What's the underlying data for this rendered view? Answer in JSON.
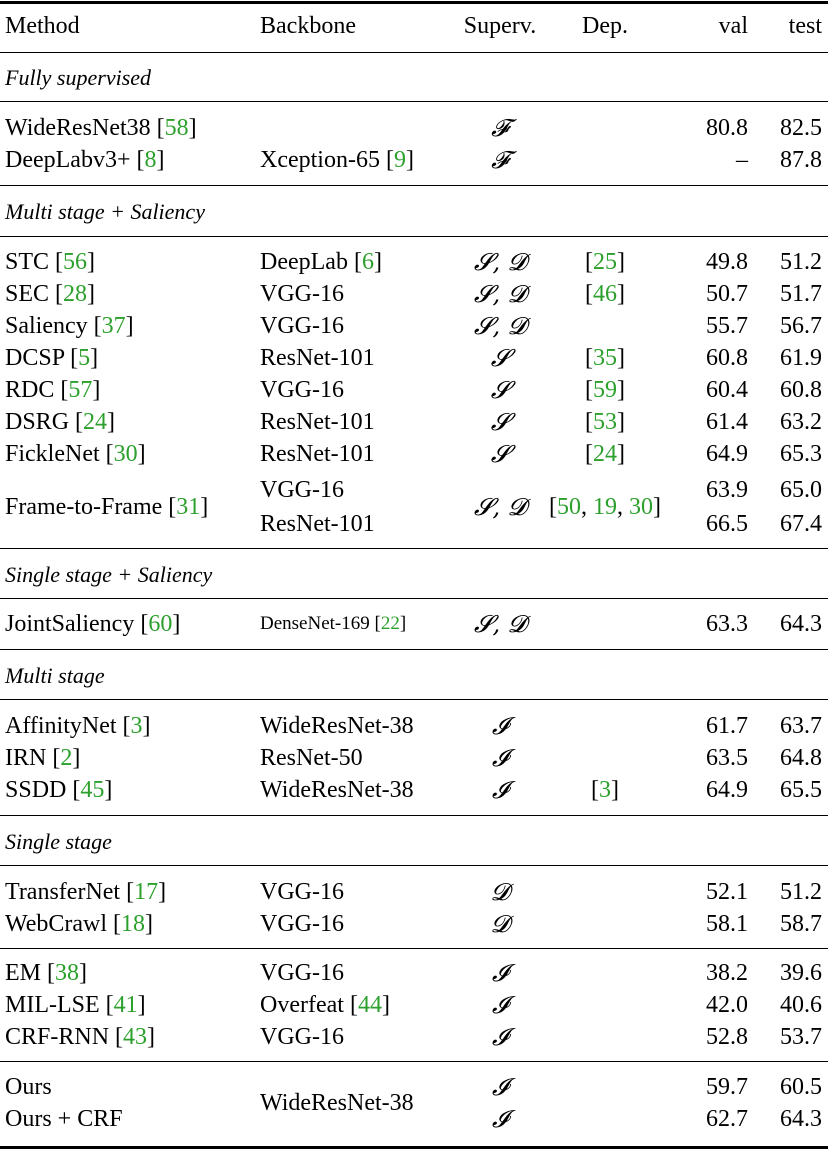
{
  "header": {
    "method": "Method",
    "backbone": "Backbone",
    "superv": "Superv.",
    "dep": "Dep.",
    "val": "val",
    "test": "test"
  },
  "groups": [
    {
      "title": "Fully supervised",
      "rows": [
        {
          "method": "WideResNet38",
          "method_ref": "58",
          "backbone": "",
          "backbone_ref": "",
          "superv": "𝓕",
          "dep": "",
          "val": "80.8",
          "test": "82.5"
        },
        {
          "method": "DeepLabv3+",
          "method_ref": "8",
          "backbone": "Xception-65",
          "backbone_ref": "9",
          "superv": "𝓕",
          "dep": "",
          "val": "–",
          "test": "87.8"
        }
      ]
    },
    {
      "title": "Multi stage + Saliency",
      "rows": [
        {
          "method": "STC",
          "method_ref": "56",
          "backbone": "DeepLab",
          "backbone_ref": "6",
          "superv": "𝓢, 𝓓",
          "dep": "25",
          "val": "49.8",
          "test": "51.2"
        },
        {
          "method": "SEC",
          "method_ref": "28",
          "backbone": "VGG-16",
          "backbone_ref": "",
          "superv": "𝓢, 𝓓",
          "dep": "46",
          "val": "50.7",
          "test": "51.7"
        },
        {
          "method": "Saliency",
          "method_ref": "37",
          "backbone": "VGG-16",
          "backbone_ref": "",
          "superv": "𝓢, 𝓓",
          "dep": "",
          "val": "55.7",
          "test": "56.7"
        },
        {
          "method": "DCSP",
          "method_ref": "5",
          "backbone": "ResNet-101",
          "backbone_ref": "",
          "superv": "𝓢",
          "dep": "35",
          "val": "60.8",
          "test": "61.9"
        },
        {
          "method": "RDC",
          "method_ref": "57",
          "backbone": "VGG-16",
          "backbone_ref": "",
          "superv": "𝓢",
          "dep": "59",
          "val": "60.4",
          "test": "60.8"
        },
        {
          "method": "DSRG",
          "method_ref": "24",
          "backbone": "ResNet-101",
          "backbone_ref": "",
          "superv": "𝓢",
          "dep": "53",
          "val": "61.4",
          "test": "63.2"
        },
        {
          "method": "FickleNet",
          "method_ref": "30",
          "backbone": "ResNet-101",
          "backbone_ref": "",
          "superv": "𝓢",
          "dep": "24",
          "val": "64.9",
          "test": "65.3"
        },
        {
          "method": "Frame-to-Frame",
          "method_ref": "31",
          "backbone": "VGG-16",
          "backbone2": "ResNet-101",
          "superv": "𝓢, 𝓓",
          "dep_refs": [
            "50",
            "19",
            "30"
          ],
          "val": "63.9",
          "test": "65.0",
          "val2": "66.5",
          "test2": "67.4"
        }
      ]
    },
    {
      "title": "Single stage + Saliency",
      "rows": [
        {
          "method": "JointSaliency",
          "method_ref": "60",
          "backbone": "DenseNet-169",
          "backbone_ref": "22",
          "superv": "𝓢, 𝓓",
          "dep": "",
          "val": "63.3",
          "test": "64.3"
        }
      ]
    },
    {
      "title": "Multi stage",
      "rows": [
        {
          "method": "AffinityNet",
          "method_ref": "3",
          "backbone": "WideResNet-38",
          "backbone_ref": "",
          "superv": "𝓘",
          "dep": "",
          "val": "61.7",
          "test": "63.7"
        },
        {
          "method": "IRN",
          "method_ref": "2",
          "backbone": "ResNet-50",
          "backbone_ref": "",
          "superv": "𝓘",
          "dep": "",
          "val": "63.5",
          "test": "64.8"
        },
        {
          "method": "SSDD",
          "method_ref": "45",
          "backbone": "WideResNet-38",
          "backbone_ref": "",
          "superv": "𝓘",
          "dep": "3",
          "val": "64.9",
          "test": "65.5"
        }
      ]
    },
    {
      "title": "Single stage",
      "rows": [
        {
          "method": "TransferNet",
          "method_ref": "17",
          "backbone": "VGG-16",
          "backbone_ref": "",
          "superv": "𝓓",
          "dep": "",
          "val": "52.1",
          "test": "51.2"
        },
        {
          "method": "WebCrawl",
          "method_ref": "18",
          "backbone": "VGG-16",
          "backbone_ref": "",
          "superv": "𝓓",
          "dep": "",
          "val": "58.1",
          "test": "58.7"
        },
        {
          "method": "EM",
          "method_ref": "38",
          "backbone": "VGG-16",
          "backbone_ref": "",
          "superv": "𝓘",
          "dep": "",
          "val": "38.2",
          "test": "39.6"
        },
        {
          "method": "MIL-LSE",
          "method_ref": "41",
          "backbone": "Overfeat",
          "backbone_ref": "44",
          "superv": "𝓘",
          "dep": "",
          "val": "42.0",
          "test": "40.6"
        },
        {
          "method": "CRF-RNN",
          "method_ref": "43",
          "backbone": "VGG-16",
          "backbone_ref": "",
          "superv": "𝓘",
          "dep": "",
          "val": "52.8",
          "test": "53.7"
        },
        {
          "method": "Ours",
          "method_ref": "",
          "backbone": "WideResNet-38",
          "backbone_ref": "",
          "superv": "𝓘",
          "dep": "",
          "val": "59.7",
          "test": "60.5"
        },
        {
          "method": "Ours + CRF",
          "method_ref": "",
          "backbone": "",
          "backbone_ref": "",
          "superv": "𝓘",
          "dep": "",
          "val": "62.7",
          "test": "64.3"
        }
      ]
    }
  ]
}
